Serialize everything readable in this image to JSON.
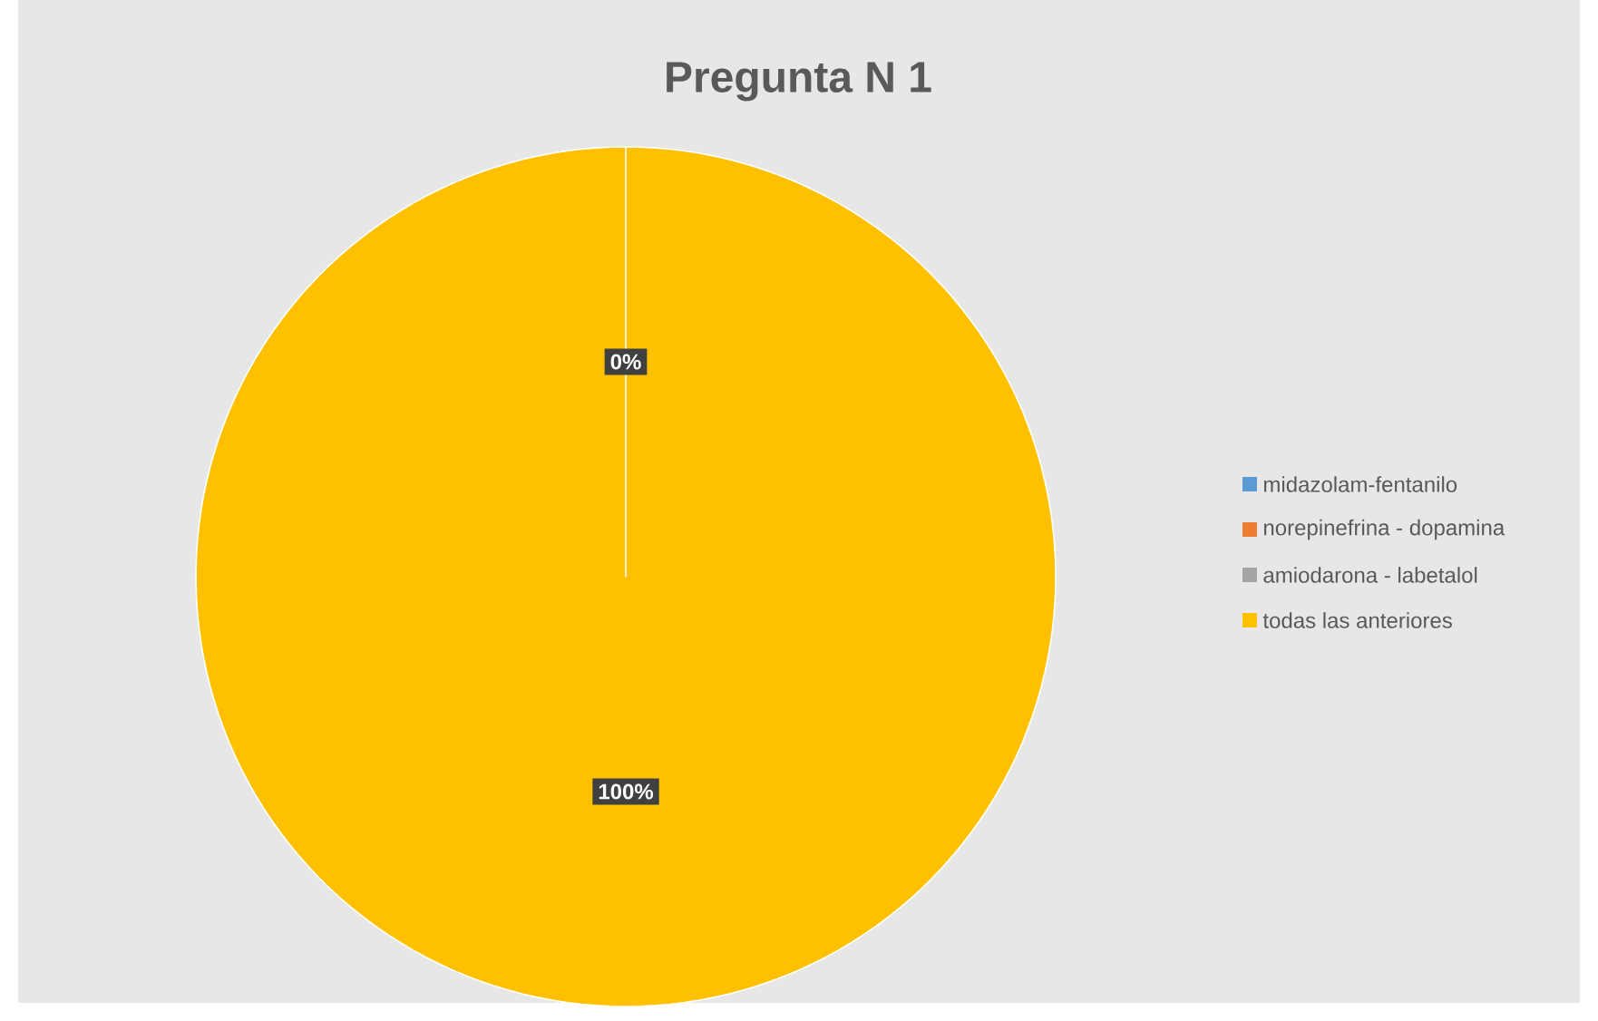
{
  "chart_data": {
    "type": "pie",
    "title": "Pregunta N 1",
    "categories": [
      "midazolam-fentanilo",
      "norepinefrina - dopamina",
      "amiodarona - labetalol",
      "todas las anteriores"
    ],
    "values": [
      0,
      0,
      0,
      100
    ],
    "colors": [
      "#5b9bd5",
      "#ed7d31",
      "#a5a5a5",
      "#ffc000"
    ],
    "value_labels": [
      "0%",
      null,
      null,
      "100%"
    ],
    "legend": "right"
  }
}
